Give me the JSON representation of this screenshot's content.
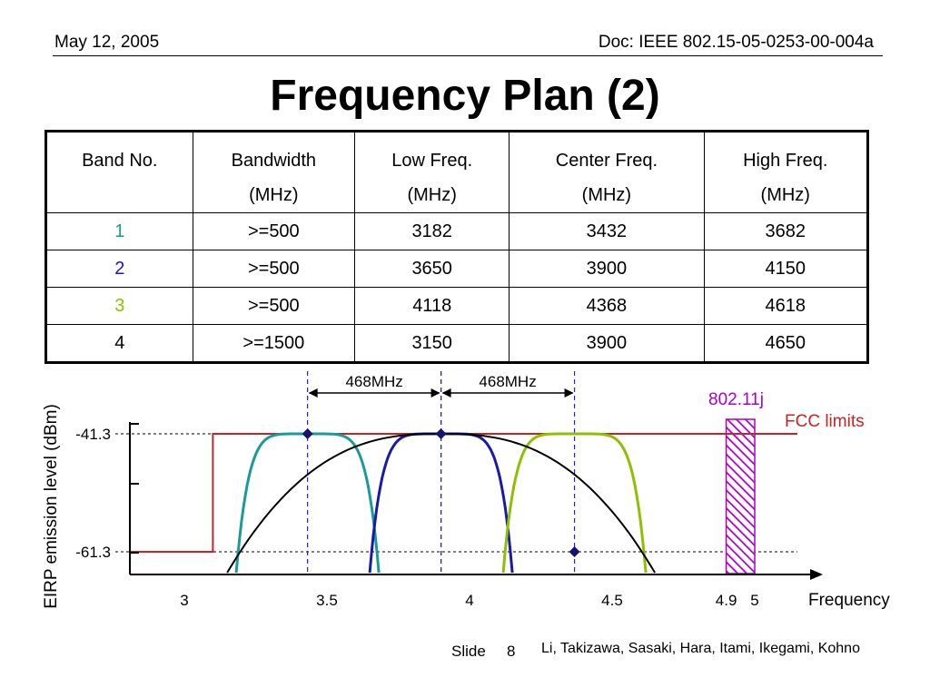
{
  "header": {
    "date": "May 12, 2005",
    "doc": "Doc: IEEE 802.15-05-0253-00-004a"
  },
  "title": "Frequency Plan (2)",
  "table": {
    "headers": [
      [
        "Band No.",
        ""
      ],
      [
        "Bandwidth",
        "(MHz)"
      ],
      [
        "Low Freq.",
        "(MHz)"
      ],
      [
        "Center Freq.",
        "(MHz)"
      ],
      [
        "High Freq.",
        "(MHz)"
      ]
    ],
    "rows": [
      {
        "band": "1",
        "band_color": "#1a9a9a",
        "bandwidth": ">=500",
        "low": "3182",
        "center": "3432",
        "high": "3682"
      },
      {
        "band": "2",
        "band_color": "#1a1aaa",
        "bandwidth": ">=500",
        "low": "3650",
        "center": "3900",
        "high": "4150"
      },
      {
        "band": "3",
        "band_color": "#8ec000",
        "bandwidth": ">=500",
        "low": "4118",
        "center": "4368",
        "high": "4618"
      },
      {
        "band": "4",
        "band_color": "#000000",
        "bandwidth": ">=1500",
        "low": "3150",
        "center": "3900",
        "high": "4650"
      }
    ]
  },
  "chart_data": {
    "type": "line",
    "xlabel": "Frequency",
    "ylabel": "EIRP emission level (dBm)",
    "x_ticks": [
      {
        "value": 3,
        "label": "3"
      },
      {
        "value": 3.5,
        "label": "3.5"
      },
      {
        "value": 4,
        "label": "4"
      },
      {
        "value": 4.5,
        "label": "4.5"
      },
      {
        "value": 4.9,
        "label": "4.9"
      },
      {
        "value": 5,
        "label": "5"
      }
    ],
    "y_ticks": [
      {
        "value": -41.3,
        "label": "-41.3"
      },
      {
        "value": -61.3,
        "label": "-61.3"
      }
    ],
    "xlim": [
      2.8,
      5.2
    ],
    "ylim": [
      -64,
      -40
    ],
    "fcc_limit": {
      "label": "FCC limits",
      "color": "#cc2222",
      "step_x": 3.1,
      "high": -41.3,
      "low": -61.3
    },
    "reserved_band": {
      "label": "802.11j",
      "color": "#aa00cc",
      "x_start": 4.9,
      "x_end": 5.0
    },
    "annotations": [
      {
        "label": "468MHz",
        "x_start": 3.432,
        "x_end": 3.9
      },
      {
        "label": "468MHz",
        "x_start": 3.9,
        "x_end": 4.368
      }
    ],
    "center_markers": [
      {
        "x": 3.432,
        "y": -41.3
      },
      {
        "x": 3.9,
        "y": -41.3
      },
      {
        "x": 4.368,
        "y": -61.3
      }
    ],
    "series": [
      {
        "band": "1",
        "color": "#1a9a9a",
        "low": 3.182,
        "center": 3.432,
        "high": 3.682
      },
      {
        "band": "2",
        "color": "#1a1aaa",
        "low": 3.65,
        "center": 3.9,
        "high": 4.15
      },
      {
        "band": "3",
        "color": "#8ec000",
        "low": 4.118,
        "center": 4.368,
        "high": 4.618
      },
      {
        "band": "4",
        "color": "#000000",
        "low": 3.15,
        "center": 3.9,
        "high": 4.65
      }
    ]
  },
  "footer": {
    "slide_label": "Slide",
    "slide_number": "8",
    "authors": "Li, Takizawa, Sasaki, Hara, Itami, Ikegami, Kohno"
  }
}
